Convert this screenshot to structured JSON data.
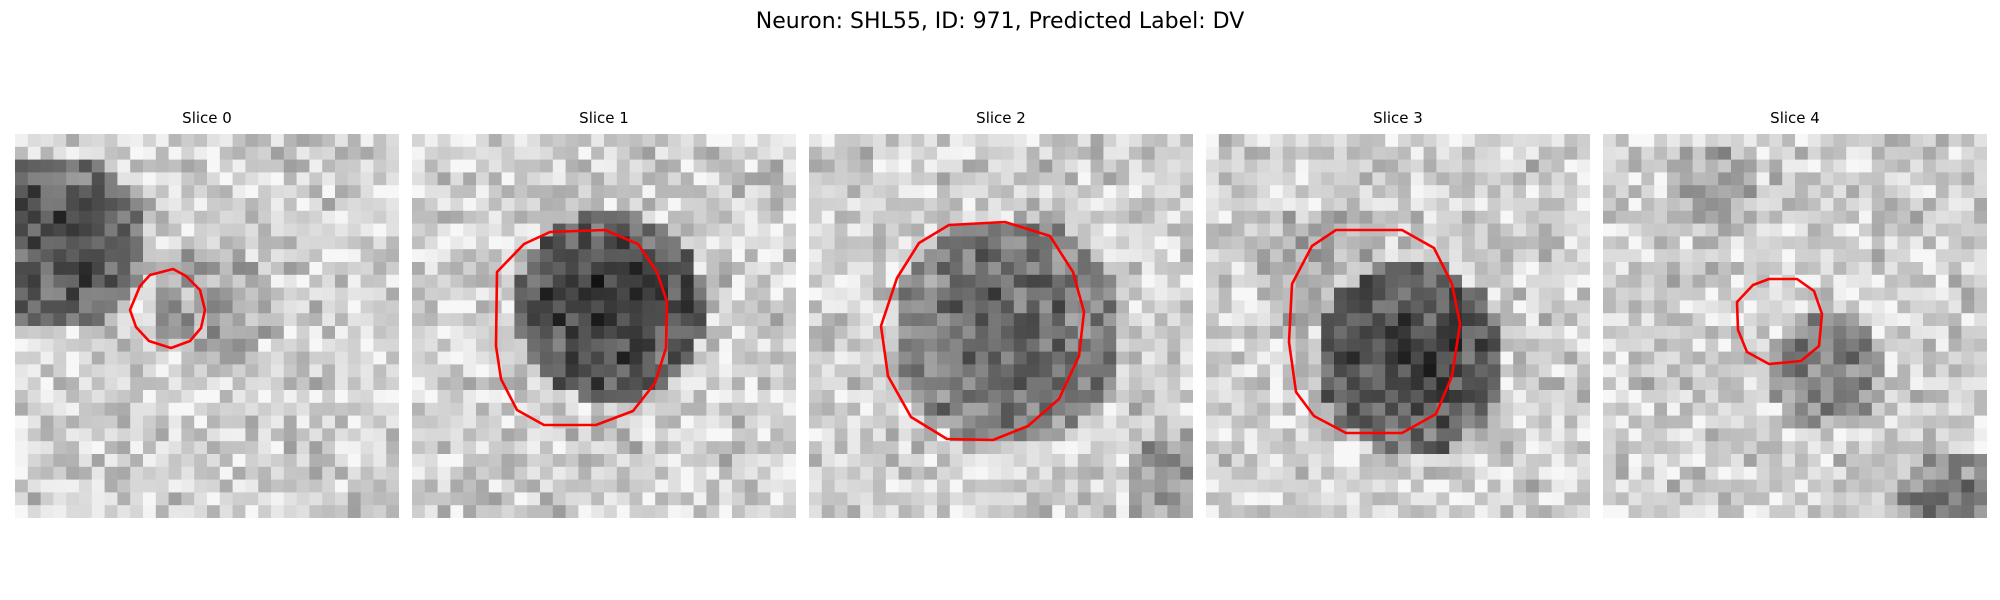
{
  "figure": {
    "title": "Neuron: SHL55, ID: 971, Predicted Label: DV"
  },
  "panels": [
    {
      "title": "Slice 0",
      "outline_color": "#ff0000"
    },
    {
      "title": "Slice 1",
      "outline_color": "#ff0000"
    },
    {
      "title": "Slice 2",
      "outline_color": "#ff0000"
    },
    {
      "title": "Slice 3",
      "outline_color": "#ff0000"
    },
    {
      "title": "Slice 4",
      "outline_color": "#ff0000"
    }
  ]
}
